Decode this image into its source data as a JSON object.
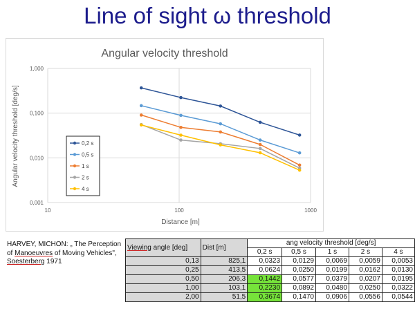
{
  "slide": {
    "title": "Line of sight ω threshold"
  },
  "chart_data": {
    "type": "line",
    "title": "Angular velocity threshold",
    "xlabel": "Distance [m]",
    "ylabel": "Angular velocity threshold [deg/s]",
    "x_scale": "log",
    "y_scale": "log",
    "xlim": [
      10,
      1000
    ],
    "ylim": [
      0.001,
      1
    ],
    "x_ticks": [
      "10",
      "100",
      "1000"
    ],
    "y_ticks": [
      "0,001",
      "0,010",
      "0,100",
      "1,000"
    ],
    "grid": true,
    "legend_position": "left",
    "x": [
      51.5,
      103.1,
      206.3,
      413.5,
      825.1
    ],
    "series": [
      {
        "name": "0,2 s",
        "color": "#2e5597",
        "values": [
          0.3674,
          0.223,
          0.1442,
          0.0624,
          0.0323
        ]
      },
      {
        "name": "0,5 s",
        "color": "#5b9bd5",
        "values": [
          0.147,
          0.0892,
          0.0577,
          0.025,
          0.0129
        ]
      },
      {
        "name": "1 s",
        "color": "#ed7d31",
        "values": [
          0.0906,
          0.048,
          0.0379,
          0.0199,
          0.0069
        ]
      },
      {
        "name": "2 s",
        "color": "#a5a5a5",
        "values": [
          0.0556,
          0.025,
          0.0207,
          0.0162,
          0.0059
        ]
      },
      {
        "name": "4 s",
        "color": "#ffc000",
        "values": [
          0.0544,
          0.0322,
          0.0195,
          0.013,
          0.0053
        ]
      }
    ]
  },
  "citation": {
    "part1": "HARVEY, MICHON: „ The Perception of ",
    "part2": "Manoeuvres",
    "part3": " of Moving Vehicles\", ",
    "part4": "Soesterberg",
    "part5": " 1971"
  },
  "table": {
    "col1_word1": "Viewing",
    "col1_rest": " angle [deg]",
    "col2": "Dist [m]",
    "group_header": "ang velocity threshold [deg/s]",
    "sub_headers": [
      "0,2 s",
      "0,5 s",
      "1 s",
      "2 s",
      "4 s"
    ],
    "rows": [
      {
        "angle": "0,13",
        "dist": "825,1",
        "values": [
          "0,0323",
          "0,0129",
          "0,0069",
          "0,0059",
          "0,0053"
        ]
      },
      {
        "angle": "0,25",
        "dist": "413,5",
        "values": [
          "0,0624",
          "0,0250",
          "0,0199",
          "0,0162",
          "0,0130"
        ]
      },
      {
        "angle": "0,50",
        "dist": "206,3",
        "values": [
          "0,1442",
          "0,0577",
          "0,0379",
          "0,0207",
          "0,0195"
        ]
      },
      {
        "angle": "1,00",
        "dist": "103,1",
        "values": [
          "0,2230",
          "0,0892",
          "0,0480",
          "0,0250",
          "0,0322"
        ]
      },
      {
        "angle": "2,00",
        "dist": "51,5",
        "values": [
          "0,3674",
          "0,1470",
          "0,0906",
          "0,0556",
          "0,0544"
        ]
      }
    ]
  }
}
